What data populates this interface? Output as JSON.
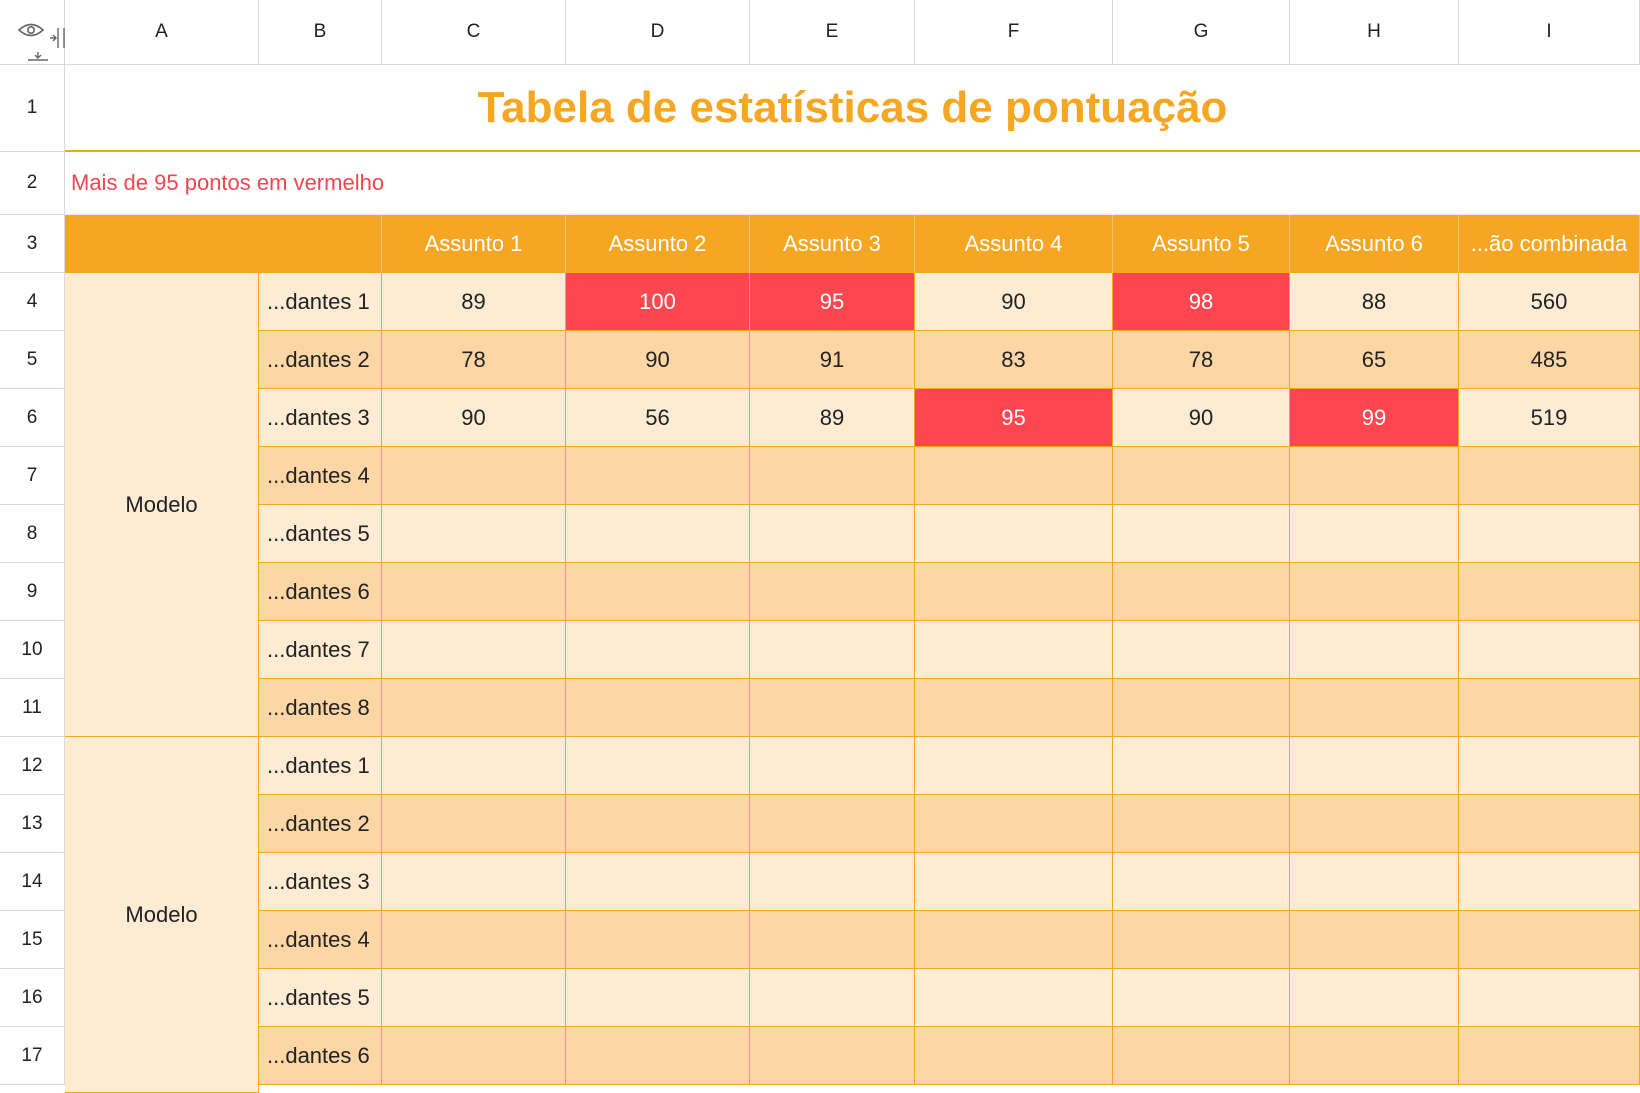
{
  "columns": [
    "A",
    "B",
    "C",
    "D",
    "E",
    "F",
    "G",
    "H",
    "I"
  ],
  "rows": [
    "1",
    "2",
    "3",
    "4",
    "5",
    "6",
    "7",
    "8",
    "9",
    "10",
    "11",
    "12",
    "13",
    "14",
    "15",
    "16",
    "17"
  ],
  "title": "Tabela de estatísticas de pontuação",
  "subtitle": "Mais de 95 pontos em vermelho",
  "headers": [
    "Assunto 1",
    "Assunto 2",
    "Assunto 3",
    "Assunto 4",
    "Assunto 5",
    "Assunto 6",
    "...ão combinada"
  ],
  "groups": [
    "Modelo",
    "Modelo"
  ],
  "student_labels": [
    "...dantes 1",
    "...dantes 2",
    "...dantes 3",
    "...dantes 4",
    "...dantes 5",
    "...dantes 6",
    "...dantes 7",
    "...dantes 8",
    "...dantes 1",
    "...dantes 2",
    "...dantes 3",
    "...dantes 4",
    "...dantes 5",
    "...dantes 6"
  ],
  "scores": [
    [
      "89",
      "100",
      "95",
      "90",
      "98",
      "88",
      "560"
    ],
    [
      "78",
      "90",
      "91",
      "83",
      "78",
      "65",
      "485"
    ],
    [
      "90",
      "56",
      "89",
      "95",
      "90",
      "99",
      "519"
    ]
  ],
  "highlight_color": "#fc4650",
  "header_color": "#f5a623",
  "icons": {
    "visibility": "eye-icon",
    "collapse_columns": "collapse-columns-icon",
    "collapse_rows": "collapse-rows-icon"
  }
}
